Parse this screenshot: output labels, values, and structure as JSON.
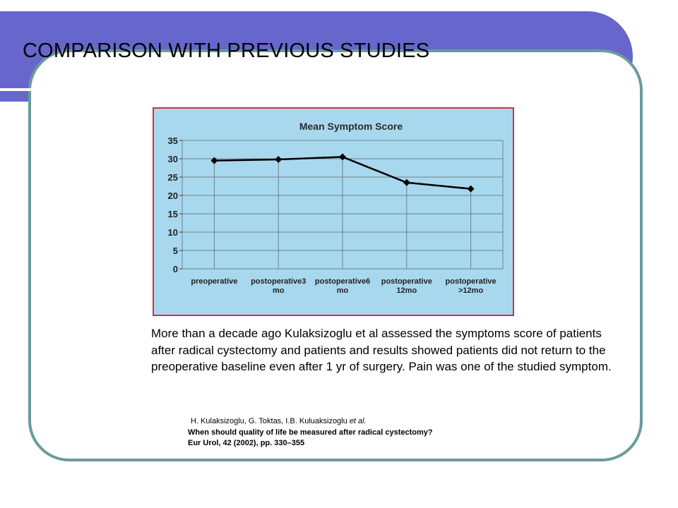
{
  "slide": {
    "title": "COMPARISON WITH PREVIOUS STUDIES",
    "body": "More than a decade ago Kulaksizoglu et al assessed the symptoms score of patients after radical cystectomy and patients and results showed patients did not return to the preoperative baseline even after 1 yr of surgery. Pain was one of the studied symptom.",
    "reference": {
      "authors": "H. Kulaksizoglu, G. Toktas, I.B. Kuluaksizoglu",
      "etal": "et al.",
      "article": "When should quality of life be measured after radical cystectomy?",
      "journal": "Eur Urol, 42 (2002),  pp. 330–355"
    },
    "colors": {
      "title_bar": "#6666cc",
      "frame": "#6a9b9b",
      "chart_bg": "#a8d8ee",
      "chart_border": "#cc3344"
    }
  },
  "chart_data": {
    "type": "line",
    "title": "Mean Symptom Score",
    "categories": [
      [
        "preoperative"
      ],
      [
        "postoperative3",
        "mo"
      ],
      [
        "postoperative6",
        "mo"
      ],
      [
        "postoperative",
        "12mo"
      ],
      [
        "postoperative",
        ">12mo"
      ]
    ],
    "values": [
      29.5,
      29.8,
      30.5,
      23.5,
      21.8
    ],
    "ylim": [
      0,
      35
    ],
    "yticks": [
      0,
      5,
      10,
      15,
      20,
      25,
      30,
      35
    ],
    "grid": true,
    "legend": "none"
  }
}
